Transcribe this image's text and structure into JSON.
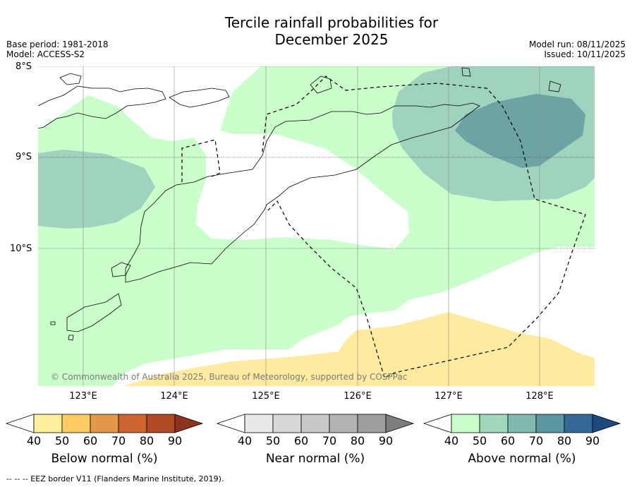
{
  "title_line1": "Tercile rainfall probabilities for",
  "title_line2": "December 2025",
  "base_period": "Base period: 1981-2018",
  "model": "Model: ACCESS-S2",
  "model_run": "Model run: 08/11/2025",
  "issued": "Issued: 10/11/2025",
  "lat_labels": [
    "8°S",
    "9°S",
    "10°S"
  ],
  "lon_labels": [
    "123°E",
    "124°E",
    "125°E",
    "126°E",
    "127°E",
    "128°E"
  ],
  "copyright": "© Commonwealth of Australia 2025, Bureau of Meteorology, supported by COSPPac",
  "colorbars": [
    {
      "label": "Below normal (%)",
      "ticks": [
        "40",
        "50",
        "60",
        "70",
        "80",
        "90"
      ],
      "colors": [
        "#fff0a0",
        "#fecb63",
        "#e3974a",
        "#cf6433",
        "#b04a27",
        "#8c321f"
      ]
    },
    {
      "label": "Near normal (%)",
      "ticks": [
        "40",
        "50",
        "60",
        "70",
        "80",
        "90"
      ],
      "colors": [
        "#e8e8e8",
        "#d8d8d8",
        "#c8c8c8",
        "#b3b3b3",
        "#9e9e9e",
        "#7d7d7d"
      ]
    },
    {
      "label": "Above normal (%)",
      "ticks": [
        "40",
        "50",
        "60",
        "70",
        "80",
        "90"
      ],
      "colors": [
        "#cafecb",
        "#a1d8bc",
        "#80b9ae",
        "#5b97a2",
        "#346896",
        "#1d4a7e"
      ]
    }
  ],
  "footnote": "--  --  -- EEZ border V11 (Flanders Marine Institute, 2019).",
  "map_colors": {
    "above_40_50": "#cafecb",
    "above_50_60": "#9fd3bd",
    "above_60_70": "#6ea3a4",
    "below_40_50": "#ffeba0"
  }
}
